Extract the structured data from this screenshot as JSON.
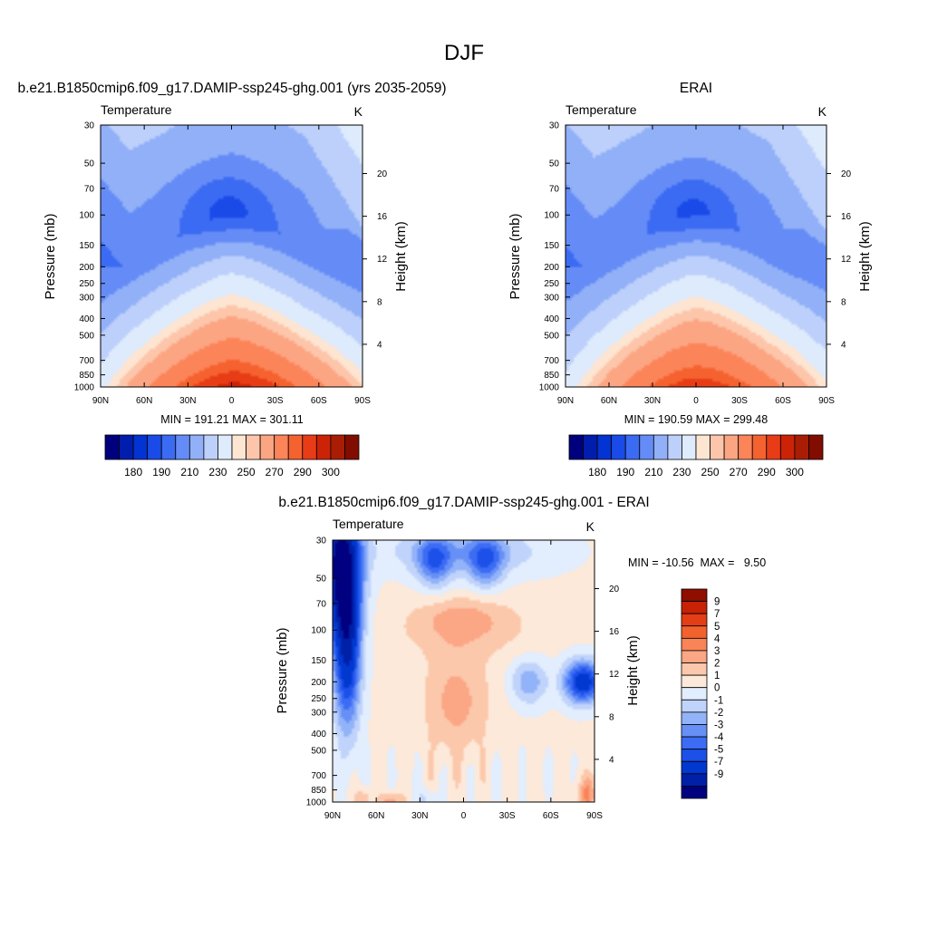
{
  "figure": {
    "title": "DJF"
  },
  "colors": {
    "absolute": [
      "#00007e",
      "#001dae",
      "#0233d3",
      "#1a4be8",
      "#3c6bf3",
      "#658cf6",
      "#91b0f8",
      "#bdd0fb",
      "#deebfd",
      "#fde5d2",
      "#fdc6aa",
      "#fca583",
      "#fc8459",
      "#f5622f",
      "#e83c17",
      "#cc2307",
      "#a91d04",
      "#810d00"
    ],
    "difference": [
      "#000080",
      "#0020a8",
      "#0038d0",
      "#1c50e8",
      "#3c6cf4",
      "#6690f6",
      "#93b3f9",
      "#c0d3fb",
      "#e2edfd",
      "#fde9da",
      "#fcc8ab",
      "#fba684",
      "#f98458",
      "#f2622e",
      "#e33e15",
      "#c72106",
      "#8e0e00"
    ]
  },
  "chart_data": [
    {
      "type": "heatmap",
      "title": "b.e21.B1850cmip6.f09_g17.DAMIP-ssp245-ghg.001 (yrs 2035-2059)",
      "left_label": "Temperature",
      "right_label": "K",
      "xlabel": "",
      "ylabel": "Pressure (mb)",
      "ylabel_right": "Height (km)",
      "x_ticks": [
        "90N",
        "60N",
        "30N",
        "0",
        "30S",
        "60S",
        "90S"
      ],
      "y_ticks": [
        "30",
        "50",
        "70",
        "100",
        "150",
        "200",
        "250",
        "300",
        "400",
        "500",
        "700",
        "850",
        "1000"
      ],
      "y_ticks_right": [
        "20",
        "16",
        "12",
        "8",
        "4"
      ],
      "stats": "MIN = 191.21  MAX = 301.11",
      "colorbar_labels": [
        "180",
        "190",
        "210",
        "230",
        "250",
        "270",
        "290",
        "300"
      ],
      "levels": [
        180,
        185,
        190,
        200,
        210,
        220,
        230,
        240,
        250,
        255,
        260,
        270,
        280,
        285,
        290,
        295,
        300
      ],
      "fields": {
        "tp": 212,
        "tc": 292,
        "tl": 258,
        "warm_pool": 199,
        "polar_hole": 0
      }
    },
    {
      "type": "heatmap",
      "title": "ERAI",
      "left_label": "Temperature",
      "right_label": "K",
      "xlabel": "",
      "ylabel": "Pressure (mb)",
      "ylabel_right": "Height (km)",
      "x_ticks": [
        "90N",
        "60N",
        "30N",
        "0",
        "30S",
        "60S",
        "90S"
      ],
      "y_ticks": [
        "30",
        "50",
        "70",
        "100",
        "150",
        "200",
        "250",
        "300",
        "400",
        "500",
        "700",
        "850",
        "1000"
      ],
      "y_ticks_right": [
        "20",
        "16",
        "12",
        "8",
        "4"
      ],
      "stats": "MIN = 190.59  MAX = 299.48",
      "colorbar_labels": [
        "180",
        "190",
        "210",
        "230",
        "250",
        "270",
        "290",
        "300"
      ],
      "levels": [
        180,
        185,
        190,
        200,
        210,
        220,
        230,
        240,
        250,
        255,
        260,
        270,
        280,
        285,
        290,
        295,
        300
      ],
      "fields": {
        "tp": 213,
        "tc": 289,
        "tl": 257,
        "warm_pool": 202,
        "polar_hole": 0
      }
    },
    {
      "type": "heatmap",
      "title": "b.e21.B1850cmip6.f09_g17.DAMIP-ssp245-ghg.001 - ERAI",
      "left_label": "Temperature",
      "right_label": "K",
      "xlabel": "",
      "ylabel": "Pressure (mb)",
      "ylabel_right": "Height (km)",
      "x_ticks": [
        "90N",
        "60N",
        "30N",
        "0",
        "30S",
        "60S",
        "90S"
      ],
      "y_ticks": [
        "30",
        "50",
        "70",
        "100",
        "150",
        "200",
        "250",
        "300",
        "400",
        "500",
        "700",
        "850",
        "1000"
      ],
      "y_ticks_right": [
        "20",
        "16",
        "12",
        "8",
        "4"
      ],
      "stats": "MIN = -10.56  MAX =   9.50",
      "colorbar_labels": [
        "9",
        "7",
        "5",
        "4",
        "3",
        "2",
        "1",
        "0",
        "-1",
        "-2",
        "-3",
        "-4",
        "-5",
        "-7",
        "-9"
      ],
      "levels": [
        -9,
        -7,
        -5,
        -4,
        -3,
        -2,
        -1,
        0,
        1,
        2,
        3,
        4,
        5,
        7,
        9
      ],
      "value_range": [
        -10.56,
        9.5
      ]
    }
  ]
}
